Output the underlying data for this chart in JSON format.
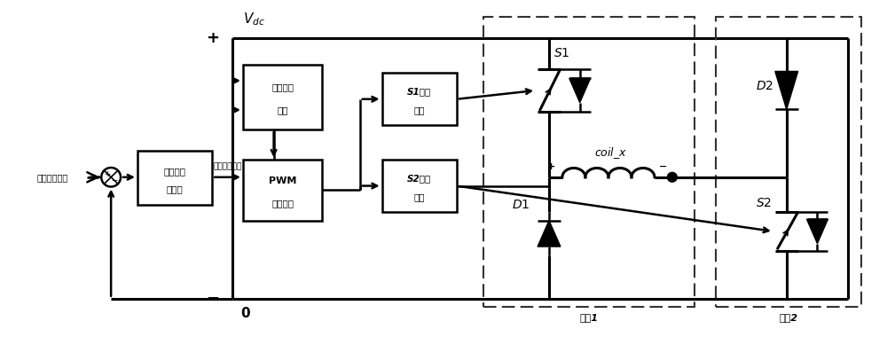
{
  "bg_color": "#ffffff",
  "line_color": "#000000",
  "fig_width": 10.0,
  "fig_height": 3.8,
  "dpi": 100,
  "label_current": "电流指令信号",
  "label_voltage": "电压指令信号",
  "label_controller": [
    "电流闭环",
    "控制器"
  ],
  "label_bus": [
    "母线电压",
    "检测"
  ],
  "label_pwm": [
    "PWM",
    "载波调制"
  ],
  "label_s1drv": [
    "S1驱动",
    "电路"
  ],
  "label_s2drv": [
    "S2驱动",
    "电路"
  ],
  "label_s1": "S1",
  "label_s2": "S2",
  "label_d1": "D1",
  "label_d2": "D2",
  "label_coil": "coil_x",
  "label_bridge1": "桥臂1",
  "label_bridge2": "桥臂2",
  "label_vdc": "$V_{dc}$",
  "label_zero": "0",
  "label_plus": "+",
  "label_minus": "-"
}
